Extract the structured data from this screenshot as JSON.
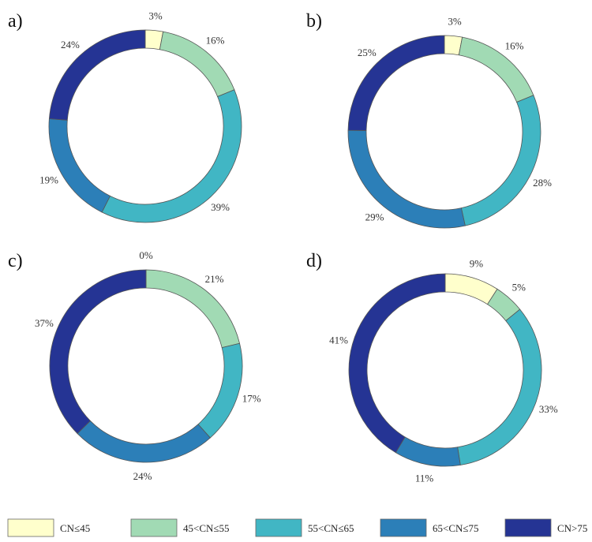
{
  "chart_data": [
    {
      "type": "pie",
      "style": "donut",
      "panel_label": "a)",
      "categories": [
        "CN≤45",
        "45<CN≤55",
        "55<CN≤65",
        "65<CN≤75",
        "CN>75"
      ],
      "values": [
        3,
        16,
        39,
        19,
        24
      ],
      "value_labels": [
        "3%",
        "16%",
        "39%",
        "19%",
        "24%"
      ]
    },
    {
      "type": "pie",
      "style": "donut",
      "panel_label": "b)",
      "categories": [
        "CN≤45",
        "45<CN≤55",
        "55<CN≤65",
        "65<CN≤75",
        "CN>75"
      ],
      "values": [
        3,
        16,
        28,
        29,
        25
      ],
      "value_labels": [
        "3%",
        "16%",
        "28%",
        "29%",
        "25%"
      ]
    },
    {
      "type": "pie",
      "style": "donut",
      "panel_label": "c)",
      "categories": [
        "CN≤45",
        "45<CN≤55",
        "55<CN≤65",
        "65<CN≤75",
        "CN>75"
      ],
      "values": [
        0,
        21,
        17,
        24,
        37
      ],
      "value_labels": [
        "0%",
        "21%",
        "17%",
        "24%",
        "37%"
      ]
    },
    {
      "type": "pie",
      "style": "donut",
      "panel_label": "d)",
      "categories": [
        "CN≤45",
        "45<CN≤55",
        "55<CN≤65",
        "65<CN≤75",
        "CN>75"
      ],
      "values": [
        9,
        5,
        33,
        11,
        41
      ],
      "value_labels": [
        "9%",
        "5%",
        "33%",
        "11%",
        "41%"
      ]
    }
  ],
  "legend": {
    "position": "bottom",
    "items": [
      {
        "label": "CN≤45",
        "color": "#ffffcc"
      },
      {
        "label": "45<CN≤55",
        "color": "#a1dab4"
      },
      {
        "label": "55<CN≤65",
        "color": "#41b6c4"
      },
      {
        "label": "65<CN≤75",
        "color": "#2c7fb8"
      },
      {
        "label": "CN>75",
        "color": "#253494"
      }
    ]
  }
}
